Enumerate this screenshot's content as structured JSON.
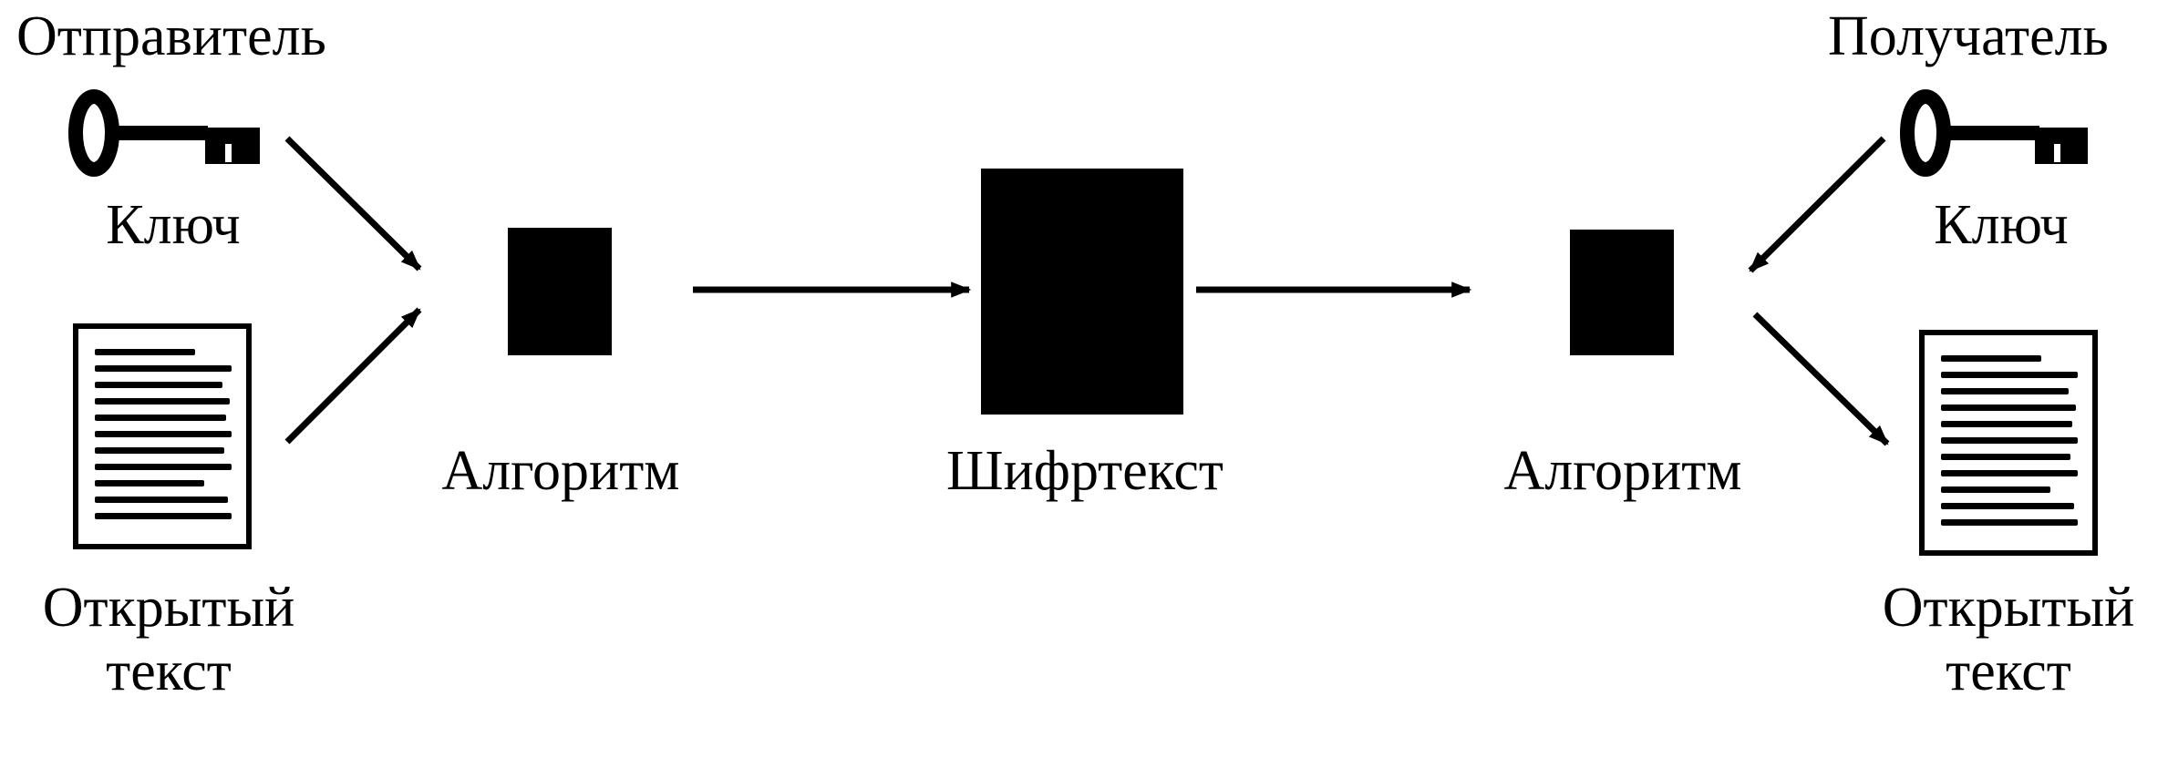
{
  "sender": {
    "title": "Отправитель",
    "key_label": "Ключ",
    "plaintext_label_line1": "Открытый",
    "plaintext_label_line2": "текст"
  },
  "receiver": {
    "title": "Получатель",
    "key_label": "Ключ",
    "plaintext_label_line1": "Открытый",
    "plaintext_label_line2": "текст"
  },
  "encrypt_algorithm_label": "Алгоритм",
  "ciphertext_label": "Шифртекст",
  "decrypt_algorithm_label": "Алгоритм",
  "colors": {
    "ink": "#000000",
    "background": "#ffffff"
  },
  "icons": [
    "key-icon",
    "document-icon"
  ]
}
